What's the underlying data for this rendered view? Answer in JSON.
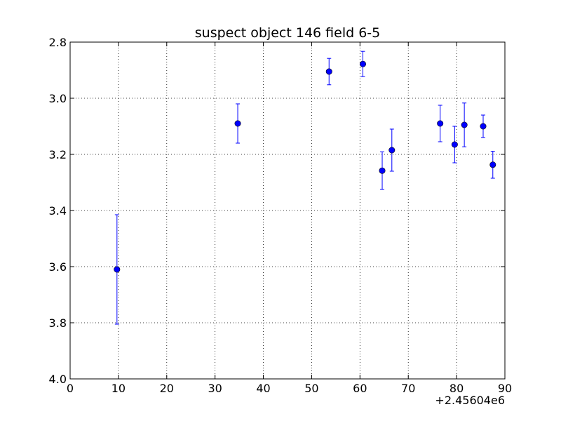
{
  "chart_data": {
    "type": "scatter",
    "title": "suspect object 146 field 6-5",
    "xlabel": "",
    "ylabel": "",
    "x_offset_label": "+2.45604e6",
    "xlim": [
      0,
      90
    ],
    "ylim": [
      2.8,
      4.0
    ],
    "y_inverted": true,
    "grid": true,
    "x_ticks": [
      0,
      10,
      20,
      30,
      40,
      50,
      60,
      70,
      80,
      90
    ],
    "x_tick_labels": [
      "0",
      "10",
      "20",
      "30",
      "40",
      "50",
      "60",
      "70",
      "80",
      "90"
    ],
    "y_ticks": [
      2.8,
      3.0,
      3.2,
      3.4,
      3.6,
      3.8,
      4.0
    ],
    "y_tick_labels": [
      "2.8",
      "3.0",
      "3.2",
      "3.4",
      "3.6",
      "3.8",
      "4.0"
    ],
    "marker_color": "#0000ff",
    "errorbar_color": "#0000ff",
    "points": [
      {
        "x": 9.7,
        "y": 3.61,
        "yerr": 0.195
      },
      {
        "x": 34.7,
        "y": 3.09,
        "yerr": 0.07
      },
      {
        "x": 53.6,
        "y": 2.905,
        "yerr": 0.047
      },
      {
        "x": 60.6,
        "y": 2.878,
        "yerr": 0.045
      },
      {
        "x": 64.6,
        "y": 3.258,
        "yerr": 0.067
      },
      {
        "x": 66.6,
        "y": 3.185,
        "yerr": 0.075
      },
      {
        "x": 76.6,
        "y": 3.09,
        "yerr": 0.065
      },
      {
        "x": 79.6,
        "y": 3.165,
        "yerr": 0.065
      },
      {
        "x": 81.6,
        "y": 3.095,
        "yerr": 0.078
      },
      {
        "x": 85.5,
        "y": 3.1,
        "yerr": 0.04
      },
      {
        "x": 87.5,
        "y": 3.237,
        "yerr": 0.048
      }
    ]
  }
}
